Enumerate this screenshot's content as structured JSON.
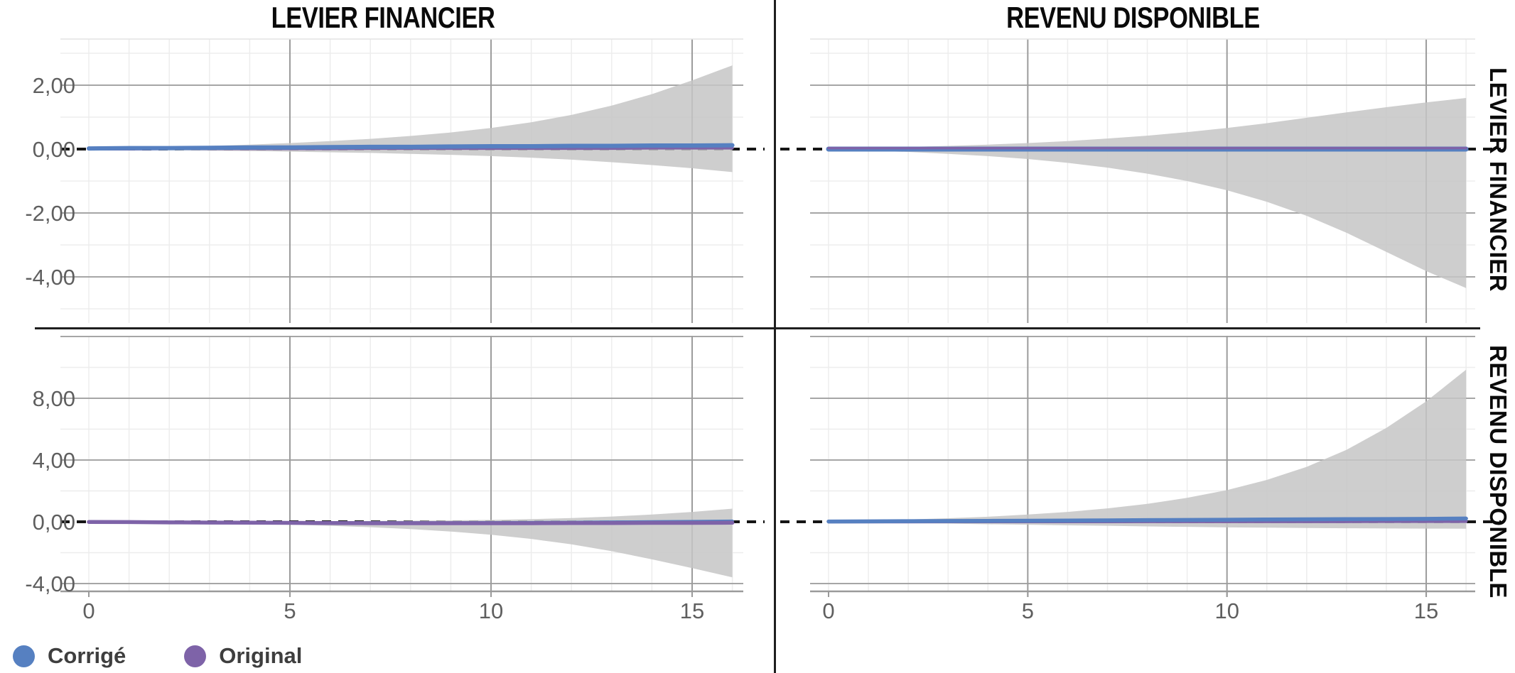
{
  "chart_data": {
    "type": "area",
    "title": "",
    "col_titles": [
      "LEVIER FINANCIER",
      "REVENU DISPONIBLE"
    ],
    "row_labels": [
      "LEVIER FINANCIER",
      "REVENU DISPONIBLE"
    ],
    "legend": [
      {
        "label": "Corrigé",
        "color": "#5680c1"
      },
      {
        "label": "Original",
        "color": "#7e63a8"
      }
    ],
    "colors": {
      "corrige": "#5680c1",
      "original": "#7e63a8",
      "band": "#c6c6c6",
      "zero_line": "#151515",
      "grid_major": "#a6a6a6",
      "grid_major_v": "#9c9c9c",
      "grid_minor": "#ededed",
      "axis_line": "#9a9a9a",
      "tick_label": "#5f5f5f",
      "panel_top_border": "#e3e3e3"
    },
    "x_values": [
      0,
      1,
      2,
      3,
      4,
      5,
      6,
      7,
      8,
      9,
      10,
      11,
      12,
      13,
      14,
      15,
      16
    ],
    "x_range": [
      0,
      16
    ],
    "x_ticks": [
      {
        "v": 0,
        "label": "0"
      },
      {
        "v": 5,
        "label": "5"
      },
      {
        "v": 10,
        "label": "10"
      },
      {
        "v": 15,
        "label": "15"
      }
    ],
    "grid": true,
    "legend_position": "bottom-left",
    "panels": [
      {
        "id": "panel-tl",
        "row": 0,
        "col": 0,
        "ylim": [
          -5.44,
          3.44
        ],
        "yticks": [
          {
            "v": 2,
            "label": "2,00"
          },
          {
            "v": 0,
            "label": "0,00"
          },
          {
            "v": -2,
            "label": "-2,00"
          },
          {
            "v": -4,
            "label": "-4,00"
          }
        ],
        "band": {
          "upper": [
            0.03,
            0.05,
            0.07,
            0.1,
            0.14,
            0.19,
            0.25,
            0.32,
            0.41,
            0.52,
            0.66,
            0.84,
            1.07,
            1.36,
            1.72,
            2.15,
            2.62
          ],
          "lower": [
            -0.02,
            -0.03,
            -0.04,
            -0.05,
            -0.06,
            -0.08,
            -0.1,
            -0.12,
            -0.15,
            -0.18,
            -0.22,
            -0.27,
            -0.33,
            -0.41,
            -0.5,
            -0.6,
            -0.72
          ]
        },
        "series": [
          {
            "name": "Original",
            "key": "original",
            "width": 4,
            "values": [
              0.0,
              0.0,
              0.01,
              0.01,
              0.01,
              0.01,
              0.01,
              0.02,
              0.02,
              0.02,
              0.02,
              0.02,
              0.02,
              0.02,
              0.03,
              0.03,
              0.03
            ]
          },
          {
            "name": "Corrigé",
            "key": "corrige",
            "width": 6,
            "values": [
              0.02,
              0.03,
              0.03,
              0.04,
              0.05,
              0.05,
              0.06,
              0.07,
              0.07,
              0.08,
              0.09,
              0.09,
              0.1,
              0.1,
              0.11,
              0.11,
              0.12
            ]
          }
        ]
      },
      {
        "id": "panel-tr",
        "row": 0,
        "col": 1,
        "ylim": [
          -5.44,
          3.44
        ],
        "yticks": [],
        "band": {
          "upper": [
            0.02,
            0.04,
            0.07,
            0.1,
            0.14,
            0.19,
            0.25,
            0.33,
            0.42,
            0.53,
            0.66,
            0.81,
            0.98,
            1.15,
            1.31,
            1.46,
            1.6
          ],
          "lower": [
            -0.02,
            -0.05,
            -0.09,
            -0.15,
            -0.22,
            -0.31,
            -0.43,
            -0.58,
            -0.77,
            -1.0,
            -1.29,
            -1.65,
            -2.09,
            -2.62,
            -3.22,
            -3.82,
            -4.35
          ]
        },
        "series": [
          {
            "name": "Corrigé",
            "key": "corrige",
            "width": 7,
            "values": [
              0.0,
              0.0,
              0.0,
              0.0,
              0.0,
              0.0,
              0.0,
              0.0,
              0.0,
              0.0,
              0.0,
              0.0,
              0.0,
              0.0,
              0.0,
              0.0,
              0.0
            ]
          },
          {
            "name": "Original",
            "key": "original",
            "width": 3.5,
            "values": [
              0.03,
              0.03,
              0.03,
              0.03,
              0.03,
              0.03,
              0.03,
              0.03,
              0.03,
              0.03,
              0.03,
              0.03,
              0.03,
              0.03,
              0.03,
              0.03,
              0.03
            ]
          }
        ]
      },
      {
        "id": "panel-bl",
        "row": 1,
        "col": 0,
        "ylim": [
          -4.5,
          12.05
        ],
        "yticks": [
          {
            "v": 8,
            "label": "8,00"
          },
          {
            "v": 4,
            "label": "4,00"
          },
          {
            "v": 0,
            "label": "0,00"
          },
          {
            "v": -4,
            "label": "-4,00"
          }
        ],
        "band": {
          "upper": [
            0.01,
            0.01,
            0.02,
            0.02,
            0.03,
            0.03,
            0.04,
            0.05,
            0.07,
            0.09,
            0.12,
            0.17,
            0.24,
            0.34,
            0.47,
            0.64,
            0.85
          ],
          "lower": [
            -0.02,
            -0.04,
            -0.07,
            -0.1,
            -0.14,
            -0.19,
            -0.26,
            -0.35,
            -0.47,
            -0.63,
            -0.84,
            -1.11,
            -1.46,
            -1.9,
            -2.43,
            -3.0,
            -3.6
          ]
        },
        "series": [
          {
            "name": "Corrigé",
            "key": "corrige",
            "width": 4.5,
            "values": [
              -0.01,
              -0.02,
              -0.03,
              -0.04,
              -0.05,
              -0.06,
              -0.06,
              -0.07,
              -0.07,
              -0.07,
              -0.06,
              -0.05,
              -0.04,
              -0.02,
              0.0,
              0.02,
              0.04
            ]
          },
          {
            "name": "Original",
            "key": "original",
            "width": 5.5,
            "values": [
              -0.01,
              -0.02,
              -0.04,
              -0.05,
              -0.06,
              -0.07,
              -0.08,
              -0.09,
              -0.09,
              -0.09,
              -0.09,
              -0.09,
              -0.08,
              -0.08,
              -0.07,
              -0.07,
              -0.06
            ]
          }
        ]
      },
      {
        "id": "panel-br",
        "row": 1,
        "col": 1,
        "ylim": [
          -4.5,
          12.05
        ],
        "yticks": [],
        "band": {
          "upper": [
            0.05,
            0.09,
            0.15,
            0.23,
            0.33,
            0.47,
            0.64,
            0.87,
            1.16,
            1.55,
            2.05,
            2.71,
            3.56,
            4.66,
            6.08,
            7.8,
            9.85
          ],
          "lower": [
            -0.03,
            -0.06,
            -0.09,
            -0.12,
            -0.16,
            -0.19,
            -0.23,
            -0.26,
            -0.3,
            -0.33,
            -0.36,
            -0.38,
            -0.4,
            -0.42,
            -0.43,
            -0.44,
            -0.45
          ]
        },
        "series": [
          {
            "name": "Original",
            "key": "original",
            "width": 4.5,
            "values": [
              0.0,
              0.0,
              0.0,
              0.01,
              0.01,
              0.01,
              0.01,
              0.01,
              0.02,
              0.02,
              0.02,
              0.02,
              0.02,
              0.02,
              0.03,
              0.03,
              0.03
            ]
          },
          {
            "name": "Corrigé",
            "key": "corrige",
            "width": 5.5,
            "values": [
              0.02,
              0.03,
              0.04,
              0.05,
              0.06,
              0.07,
              0.08,
              0.09,
              0.11,
              0.12,
              0.13,
              0.15,
              0.16,
              0.17,
              0.18,
              0.19,
              0.21
            ]
          }
        ]
      }
    ]
  }
}
